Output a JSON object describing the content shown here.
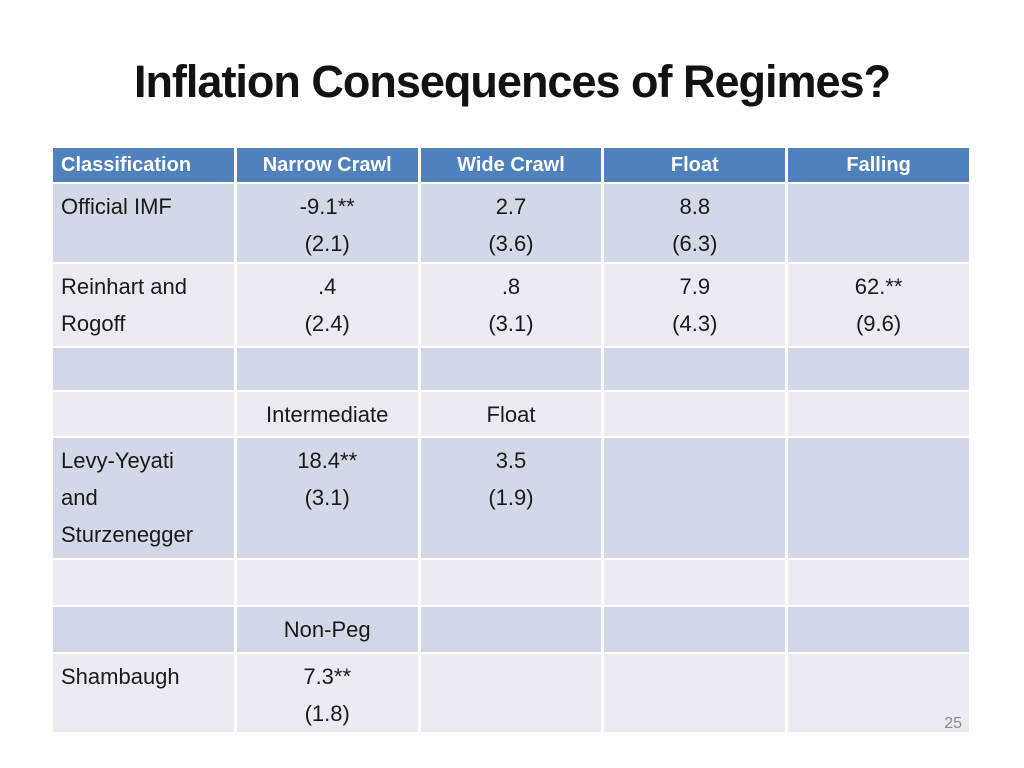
{
  "slide": {
    "title": "Inflation Consequences of Regimes?",
    "page_number": "25"
  },
  "colors": {
    "header_bg": "#4f81bd",
    "header_text": "#ffffff",
    "band_dark": "#d2d8e7",
    "band_light": "#eaecf4",
    "title_text": "#121212",
    "page_number_text": "#8a8a8a"
  },
  "table": {
    "columns": [
      "Classification",
      "Narrow Crawl",
      "Wide Crawl",
      "Float",
      "Falling"
    ],
    "rows": [
      {
        "cells": [
          [
            "Official IMF"
          ],
          [
            "-9.1**",
            "(2.1)"
          ],
          [
            "2.7",
            "(3.6)"
          ],
          [
            "8.8",
            "(6.3)"
          ],
          []
        ]
      },
      {
        "cells": [
          [
            "Reinhart and",
            "Rogoff"
          ],
          [
            ".4",
            "(2.4)"
          ],
          [
            ".8",
            "(3.1)"
          ],
          [
            "7.9",
            "(4.3)"
          ],
          [
            "62.**",
            "(9.6)"
          ]
        ]
      },
      {
        "cells": [
          [],
          [],
          [],
          [],
          []
        ]
      },
      {
        "cells": [
          [],
          [
            "Intermediate"
          ],
          [
            "Float"
          ],
          [],
          []
        ]
      },
      {
        "cells": [
          [
            "Levy-Yeyati",
            "and",
            "Sturzenegger"
          ],
          [
            "18.4**",
            "(3.1)"
          ],
          [
            "3.5",
            "(1.9)"
          ],
          [],
          []
        ]
      },
      {
        "cells": [
          [],
          [],
          [],
          [],
          []
        ]
      },
      {
        "cells": [
          [],
          [
            "Non-Peg"
          ],
          [],
          [],
          []
        ]
      },
      {
        "cells": [
          [
            "Shambaugh"
          ],
          [
            "7.3**",
            "(1.8)"
          ],
          [],
          [],
          []
        ]
      }
    ]
  }
}
